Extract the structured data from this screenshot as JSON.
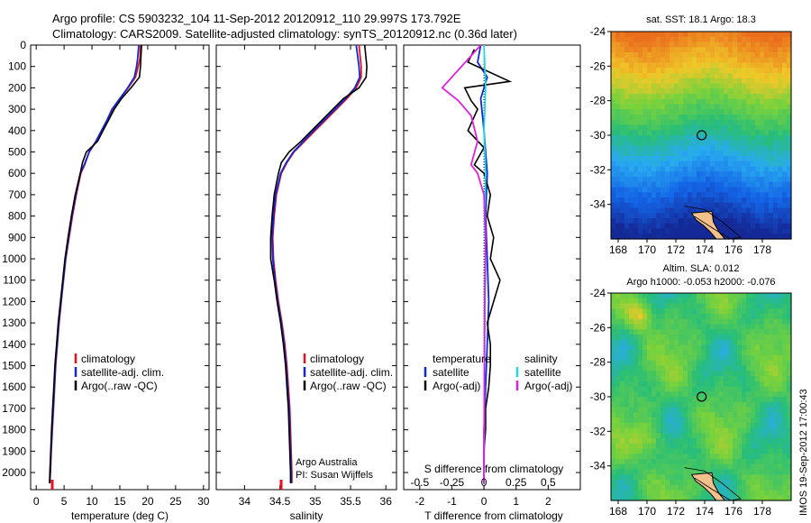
{
  "header": {
    "line1": "Argo profile: CS 5903232_104 11-Sep-2012 20120912_110 29.997S 173.792E",
    "line2": "Climatology: CARS2009. Satellite-adjusted climatology: synTS_20120912.nc (0.36d later)"
  },
  "vertical_credit": "IMOS 19-Sep-2012 17:00:43",
  "colors": {
    "climatology": "#e8121c",
    "satellite": "#1028d8",
    "argo": "#000000",
    "sal_satellite": "#20d8e8",
    "sal_argo": "#e020e0",
    "land": "#f4c08c"
  },
  "chart_data": [
    {
      "type": "line",
      "name": "temperature-profile",
      "xlabel": "temperature (deg C)",
      "ylabel": "",
      "xlim": [
        -1,
        31
      ],
      "ylim": [
        2080,
        0
      ],
      "xticks": [
        "0",
        "5",
        "10",
        "15",
        "20",
        "25",
        "30"
      ],
      "yticks": [
        "0",
        "100",
        "200",
        "300",
        "400",
        "500",
        "600",
        "700",
        "800",
        "900",
        "1000",
        "1100",
        "1200",
        "1300",
        "1400",
        "1500",
        "1600",
        "1700",
        "1800",
        "1900",
        "2000"
      ],
      "legend": [
        "climatology",
        "satellite-adj. clim.",
        "Argo(..raw -QC)"
      ],
      "legend_position": "lower-right",
      "series": [
        {
          "name": "climatology",
          "color_key": "climatology",
          "points": [
            [
              18.7,
              0
            ],
            [
              18.6,
              60
            ],
            [
              18.3,
              100
            ],
            [
              17.8,
              150
            ],
            [
              16.5,
              200
            ],
            [
              15.0,
              250
            ],
            [
              13.7,
              300
            ],
            [
              12.8,
              350
            ],
            [
              11.8,
              400
            ],
            [
              10.8,
              450
            ],
            [
              9.5,
              500
            ],
            [
              8.7,
              560
            ],
            [
              8.0,
              600
            ],
            [
              7.2,
              700
            ],
            [
              6.5,
              800
            ],
            [
              5.9,
              900
            ],
            [
              5.3,
              1000
            ],
            [
              4.9,
              1100
            ],
            [
              4.5,
              1200
            ],
            [
              4.1,
              1300
            ],
            [
              3.8,
              1400
            ],
            [
              3.5,
              1500
            ],
            [
              3.3,
              1600
            ],
            [
              3.1,
              1700
            ],
            [
              2.9,
              1800
            ],
            [
              2.7,
              1900
            ],
            [
              2.55,
              2000
            ],
            [
              2.45,
              2050
            ]
          ]
        },
        {
          "name": "satellite-adj. clim.",
          "color_key": "satellite",
          "points": [
            [
              18.4,
              0
            ],
            [
              18.2,
              60
            ],
            [
              18.0,
              100
            ],
            [
              17.6,
              150
            ],
            [
              16.4,
              200
            ],
            [
              15.0,
              250
            ],
            [
              13.6,
              300
            ],
            [
              12.7,
              350
            ],
            [
              11.7,
              400
            ],
            [
              10.7,
              450
            ],
            [
              9.5,
              500
            ],
            [
              8.6,
              560
            ],
            [
              7.9,
              600
            ],
            [
              7.1,
              700
            ],
            [
              6.4,
              800
            ],
            [
              5.8,
              900
            ],
            [
              5.25,
              1000
            ],
            [
              4.85,
              1100
            ],
            [
              4.45,
              1200
            ],
            [
              4.05,
              1300
            ],
            [
              3.75,
              1400
            ],
            [
              3.45,
              1500
            ],
            [
              3.25,
              1600
            ],
            [
              3.05,
              1700
            ],
            [
              2.85,
              1800
            ],
            [
              2.65,
              1900
            ],
            [
              2.5,
              2000
            ],
            [
              2.4,
              2050
            ]
          ]
        },
        {
          "name": "Argo(..raw -QC)",
          "color_key": "argo",
          "points": [
            [
              18.9,
              0
            ],
            [
              18.8,
              50
            ],
            [
              18.7,
              100
            ],
            [
              18.5,
              150
            ],
            [
              17.0,
              200
            ],
            [
              15.3,
              250
            ],
            [
              14.0,
              300
            ],
            [
              13.0,
              350
            ],
            [
              12.0,
              400
            ],
            [
              11.0,
              450
            ],
            [
              9.0,
              500
            ],
            [
              8.3,
              550
            ],
            [
              7.9,
              600
            ],
            [
              7.0,
              700
            ],
            [
              6.3,
              800
            ],
            [
              5.7,
              900
            ],
            [
              5.15,
              1000
            ],
            [
              4.75,
              1100
            ],
            [
              4.35,
              1200
            ],
            [
              3.95,
              1300
            ],
            [
              3.65,
              1400
            ],
            [
              3.35,
              1500
            ],
            [
              3.15,
              1600
            ],
            [
              2.95,
              1700
            ],
            [
              2.75,
              1800
            ],
            [
              2.6,
              1900
            ],
            [
              2.45,
              2000
            ],
            [
              2.4,
              2050
            ]
          ]
        }
      ]
    },
    {
      "type": "line",
      "name": "salinity-profile",
      "xlabel": "salinity",
      "xlim": [
        33.6,
        36.15
      ],
      "ylim": [
        2080,
        0
      ],
      "xticks": [
        "34",
        "34.5",
        "35",
        "35.5",
        "36"
      ],
      "legend": [
        "climatology",
        "satellite-adj. clim.",
        "Argo(..raw -QC)"
      ],
      "legend_position": "lower-right",
      "annotation": [
        "Argo Australia",
        "PI: Susan Wijffels"
      ],
      "series": [
        {
          "name": "climatology",
          "color_key": "climatology",
          "points": [
            [
              35.62,
              0
            ],
            [
              35.65,
              100
            ],
            [
              35.65,
              150
            ],
            [
              35.58,
              200
            ],
            [
              35.45,
              250
            ],
            [
              35.3,
              300
            ],
            [
              35.15,
              350
            ],
            [
              35.0,
              400
            ],
            [
              34.85,
              450
            ],
            [
              34.7,
              500
            ],
            [
              34.6,
              550
            ],
            [
              34.52,
              600
            ],
            [
              34.45,
              700
            ],
            [
              34.42,
              800
            ],
            [
              34.4,
              900
            ],
            [
              34.41,
              1000
            ],
            [
              34.44,
              1100
            ],
            [
              34.48,
              1200
            ],
            [
              34.53,
              1300
            ],
            [
              34.57,
              1400
            ],
            [
              34.6,
              1500
            ],
            [
              34.62,
              1600
            ],
            [
              34.64,
              1700
            ],
            [
              34.65,
              1800
            ],
            [
              34.66,
              1900
            ],
            [
              34.67,
              2000
            ],
            [
              34.67,
              2050
            ]
          ]
        },
        {
          "name": "satellite-adj. clim.",
          "color_key": "satellite",
          "points": [
            [
              35.58,
              0
            ],
            [
              35.62,
              100
            ],
            [
              35.63,
              150
            ],
            [
              35.56,
              200
            ],
            [
              35.43,
              250
            ],
            [
              35.28,
              300
            ],
            [
              35.13,
              350
            ],
            [
              34.98,
              400
            ],
            [
              34.83,
              450
            ],
            [
              34.69,
              500
            ],
            [
              34.59,
              550
            ],
            [
              34.51,
              600
            ],
            [
              34.44,
              700
            ],
            [
              34.41,
              800
            ],
            [
              34.39,
              900
            ],
            [
              34.4,
              1000
            ],
            [
              34.43,
              1100
            ],
            [
              34.47,
              1200
            ],
            [
              34.52,
              1300
            ],
            [
              34.56,
              1400
            ],
            [
              34.59,
              1500
            ],
            [
              34.61,
              1600
            ],
            [
              34.63,
              1700
            ],
            [
              34.64,
              1800
            ],
            [
              34.65,
              1900
            ],
            [
              34.66,
              2000
            ],
            [
              34.66,
              2050
            ]
          ]
        },
        {
          "name": "Argo(..raw -QC)",
          "color_key": "argo",
          "points": [
            [
              35.7,
              0
            ],
            [
              35.73,
              100
            ],
            [
              35.72,
              150
            ],
            [
              35.62,
              200
            ],
            [
              35.4,
              250
            ],
            [
              35.25,
              300
            ],
            [
              35.1,
              350
            ],
            [
              34.95,
              400
            ],
            [
              34.8,
              450
            ],
            [
              34.63,
              500
            ],
            [
              34.52,
              550
            ],
            [
              34.48,
              600
            ],
            [
              34.42,
              700
            ],
            [
              34.39,
              800
            ],
            [
              34.37,
              900
            ],
            [
              34.37,
              1000
            ],
            [
              34.42,
              1100
            ],
            [
              34.46,
              1200
            ],
            [
              34.51,
              1300
            ],
            [
              34.55,
              1400
            ],
            [
              34.58,
              1500
            ],
            [
              34.6,
              1600
            ],
            [
              34.62,
              1700
            ],
            [
              34.63,
              1800
            ],
            [
              34.64,
              1900
            ],
            [
              34.65,
              2000
            ],
            [
              34.65,
              2050
            ]
          ]
        }
      ]
    },
    {
      "type": "line",
      "name": "difference-profile",
      "xlabel": "T difference from climatology",
      "top_axis_label": "S difference from climatology",
      "xlim": [
        -2.5,
        3.0
      ],
      "ylim": [
        2080,
        0
      ],
      "xticks": [
        "-2",
        "-1",
        "0",
        "1",
        "2"
      ],
      "top_ticks": [
        "-0.5",
        "-0.25",
        "0",
        "0.25",
        "0.5"
      ],
      "legend_left_title": "temperature",
      "legend_right_title": "salinity",
      "legend": [
        "satellite",
        "Argo(-adj)",
        "satellite",
        "Argo(-adj)"
      ],
      "series": [
        {
          "name": "satellite",
          "color_key": "satellite",
          "points": [
            [
              -0.1,
              0
            ],
            [
              -0.2,
              80
            ],
            [
              0.1,
              150
            ],
            [
              -0.1,
              250
            ],
            [
              0.0,
              400
            ],
            [
              0.1,
              600
            ],
            [
              0.05,
              800
            ],
            [
              0.1,
              1000
            ],
            [
              0.15,
              1200
            ],
            [
              0.1,
              1400
            ],
            [
              0.05,
              1600
            ],
            [
              0.0,
              1800
            ],
            [
              0.0,
              2050
            ]
          ]
        },
        {
          "name": "Argo(-adj)",
          "color_key": "argo",
          "points": [
            [
              -0.3,
              20
            ],
            [
              -0.5,
              80
            ],
            [
              0.8,
              170
            ],
            [
              -0.6,
              200
            ],
            [
              -0.4,
              260
            ],
            [
              -0.2,
              300
            ],
            [
              -0.5,
              400
            ],
            [
              0.0,
              480
            ],
            [
              -0.3,
              560
            ],
            [
              0.0,
              600
            ],
            [
              0.2,
              700
            ],
            [
              0.1,
              800
            ],
            [
              0.3,
              900
            ],
            [
              0.2,
              1000
            ],
            [
              0.5,
              1100
            ],
            [
              0.3,
              1200
            ],
            [
              0.1,
              1300
            ],
            [
              0.2,
              1400
            ],
            [
              0.2,
              1500
            ],
            [
              0.15,
              1600
            ],
            [
              0.05,
              1700
            ],
            [
              0.05,
              1800
            ],
            [
              0.0,
              1900
            ],
            [
              0.0,
              2050
            ]
          ]
        },
        {
          "name": "satellite (salinity)",
          "color_key": "sal_satellite",
          "points": [
            [
              0.0,
              0
            ],
            [
              0.05,
              200
            ],
            [
              0.0,
              400
            ],
            [
              0.05,
              600
            ],
            [
              0.02,
              800
            ],
            [
              0.05,
              1000
            ],
            [
              0.02,
              1400
            ],
            [
              0.0,
              2050
            ]
          ]
        },
        {
          "name": "Argo(-adj) (salinity)",
          "color_key": "sal_argo",
          "points": [
            [
              -0.1,
              0
            ],
            [
              -1.3,
              200
            ],
            [
              -0.8,
              260
            ],
            [
              -0.4,
              330
            ],
            [
              -0.2,
              450
            ],
            [
              -0.4,
              560
            ],
            [
              -0.2,
              600
            ],
            [
              0.0,
              700
            ],
            [
              0.05,
              900
            ],
            [
              0.02,
              1200
            ],
            [
              0.0,
              2050
            ]
          ]
        }
      ]
    },
    {
      "type": "heatmap",
      "name": "sst-map",
      "title": "sat. SST: 18.1 Argo: 18.3",
      "xlim": [
        167.5,
        180
      ],
      "ylim": [
        -36,
        -24
      ],
      "xticks": [
        "168",
        "170",
        "172",
        "174",
        "176",
        "178"
      ],
      "yticks": [
        "-24",
        "-26",
        "-28",
        "-30",
        "-32",
        "-34"
      ],
      "marker": [
        173.792,
        -29.997
      ]
    },
    {
      "type": "heatmap",
      "name": "sla-map",
      "title": "Altim. SLA: 0.012",
      "subtitle": "Argo h1000: -0.053 h2000: -0.076",
      "xlim": [
        167.5,
        180
      ],
      "ylim": [
        -36,
        -24
      ],
      "xticks": [
        "168",
        "170",
        "172",
        "174",
        "176",
        "178"
      ],
      "yticks": [
        "-24",
        "-26",
        "-28",
        "-30",
        "-32",
        "-34"
      ],
      "marker": [
        173.792,
        -29.997
      ]
    }
  ]
}
